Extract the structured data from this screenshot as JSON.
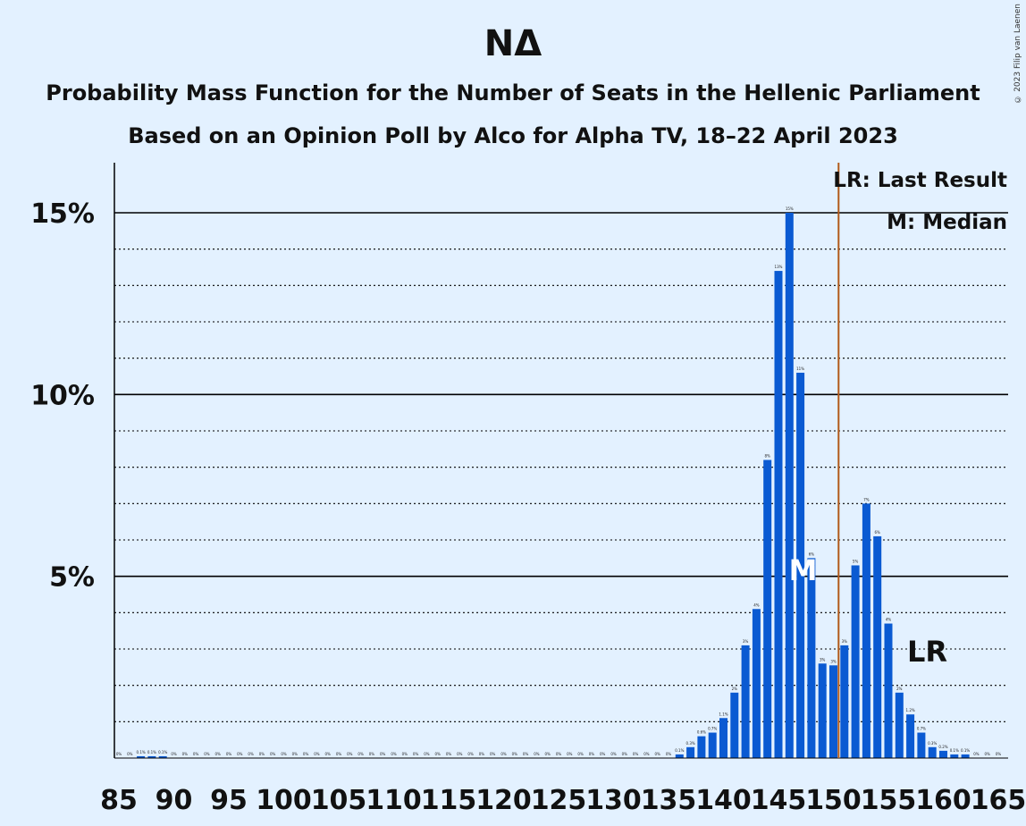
{
  "title": "ΝΔ",
  "subtitle1": "Probability Mass Function for the Number of Seats in the Hellenic Parliament",
  "subtitle2": "Based on an Opinion Poll by Alco for Alpha TV, 18–22 April 2023",
  "copyright": "© 2023 Filip van Laenen",
  "legend": {
    "last_result": "LR: Last Result",
    "median": "M: Median"
  },
  "markers": {
    "median_label": "M",
    "last_result_label": "LR"
  },
  "colors": {
    "bar": "#0a5ad2",
    "last_result_line": "#b25a1a",
    "background": "#e3f1ff"
  },
  "chart_data": {
    "type": "bar",
    "xlim": [
      85,
      165
    ],
    "ylim": [
      0,
      16
    ],
    "yticks": [
      5,
      10,
      15
    ],
    "ytick_labels": [
      "5%",
      "10%",
      "15%"
    ],
    "xtick_labels": [
      "85",
      "90",
      "95",
      "100",
      "105",
      "110",
      "115",
      "120",
      "125",
      "130",
      "135",
      "140",
      "145",
      "150",
      "155",
      "160",
      "165"
    ],
    "median": 147,
    "last_result": 151,
    "x": [
      85,
      86,
      87,
      88,
      89,
      90,
      91,
      92,
      93,
      94,
      95,
      96,
      97,
      98,
      99,
      100,
      101,
      102,
      103,
      104,
      105,
      106,
      107,
      108,
      109,
      110,
      111,
      112,
      113,
      114,
      115,
      116,
      117,
      118,
      119,
      120,
      121,
      122,
      123,
      124,
      125,
      126,
      127,
      128,
      129,
      130,
      131,
      132,
      133,
      134,
      135,
      136,
      137,
      138,
      139,
      140,
      141,
      142,
      143,
      144,
      145,
      146,
      147,
      148,
      149,
      150,
      151,
      152,
      153,
      154,
      155,
      156,
      157,
      158,
      159,
      160,
      161,
      162,
      163,
      164,
      165
    ],
    "values": [
      0,
      0,
      0.05,
      0.05,
      0.05,
      0,
      0,
      0,
      0,
      0,
      0,
      0,
      0,
      0,
      0,
      0,
      0,
      0,
      0,
      0,
      0,
      0,
      0,
      0,
      0,
      0,
      0,
      0,
      0,
      0,
      0,
      0,
      0,
      0,
      0,
      0,
      0,
      0,
      0,
      0,
      0,
      0,
      0,
      0,
      0,
      0,
      0,
      0,
      0,
      0,
      0,
      0.1,
      0.3,
      0.6,
      0.7,
      1.1,
      1.8,
      3.1,
      4.1,
      8.2,
      13.4,
      15.0,
      10.6,
      5.5,
      2.6,
      2.55,
      3.1,
      5.3,
      7.0,
      6.1,
      3.7,
      1.8,
      1.2,
      0.7,
      0.3,
      0.2,
      0.1,
      0.1,
      0,
      0,
      0
    ],
    "labels": [
      "0%",
      "0%",
      "0.1%",
      "0.1%",
      "0.1%",
      "0%",
      "0%",
      "0%",
      "0%",
      "0%",
      "0%",
      "0%",
      "0%",
      "0%",
      "0%",
      "0%",
      "0%",
      "0%",
      "0%",
      "0%",
      "0%",
      "0%",
      "0%",
      "0%",
      "0%",
      "0%",
      "0%",
      "0%",
      "0%",
      "0%",
      "0%",
      "0%",
      "0%",
      "0%",
      "0%",
      "0%",
      "0%",
      "0%",
      "0%",
      "0%",
      "0%",
      "0%",
      "0%",
      "0%",
      "0%",
      "0%",
      "0%",
      "0%",
      "0%",
      "0%",
      "0%",
      "0.1%",
      "0.3%",
      "0.6%",
      "0.7%",
      "1.1%",
      "2%",
      "3%",
      "4%",
      "8%",
      "13%",
      "15%",
      "11%",
      "6%",
      "3%",
      "3%",
      "3%",
      "5%",
      "7%",
      "6%",
      "4%",
      "2%",
      "1.2%",
      "0.7%",
      "0.3%",
      "0.2%",
      "0.1%",
      "0.1%",
      "0%",
      "0%",
      "0%"
    ]
  }
}
